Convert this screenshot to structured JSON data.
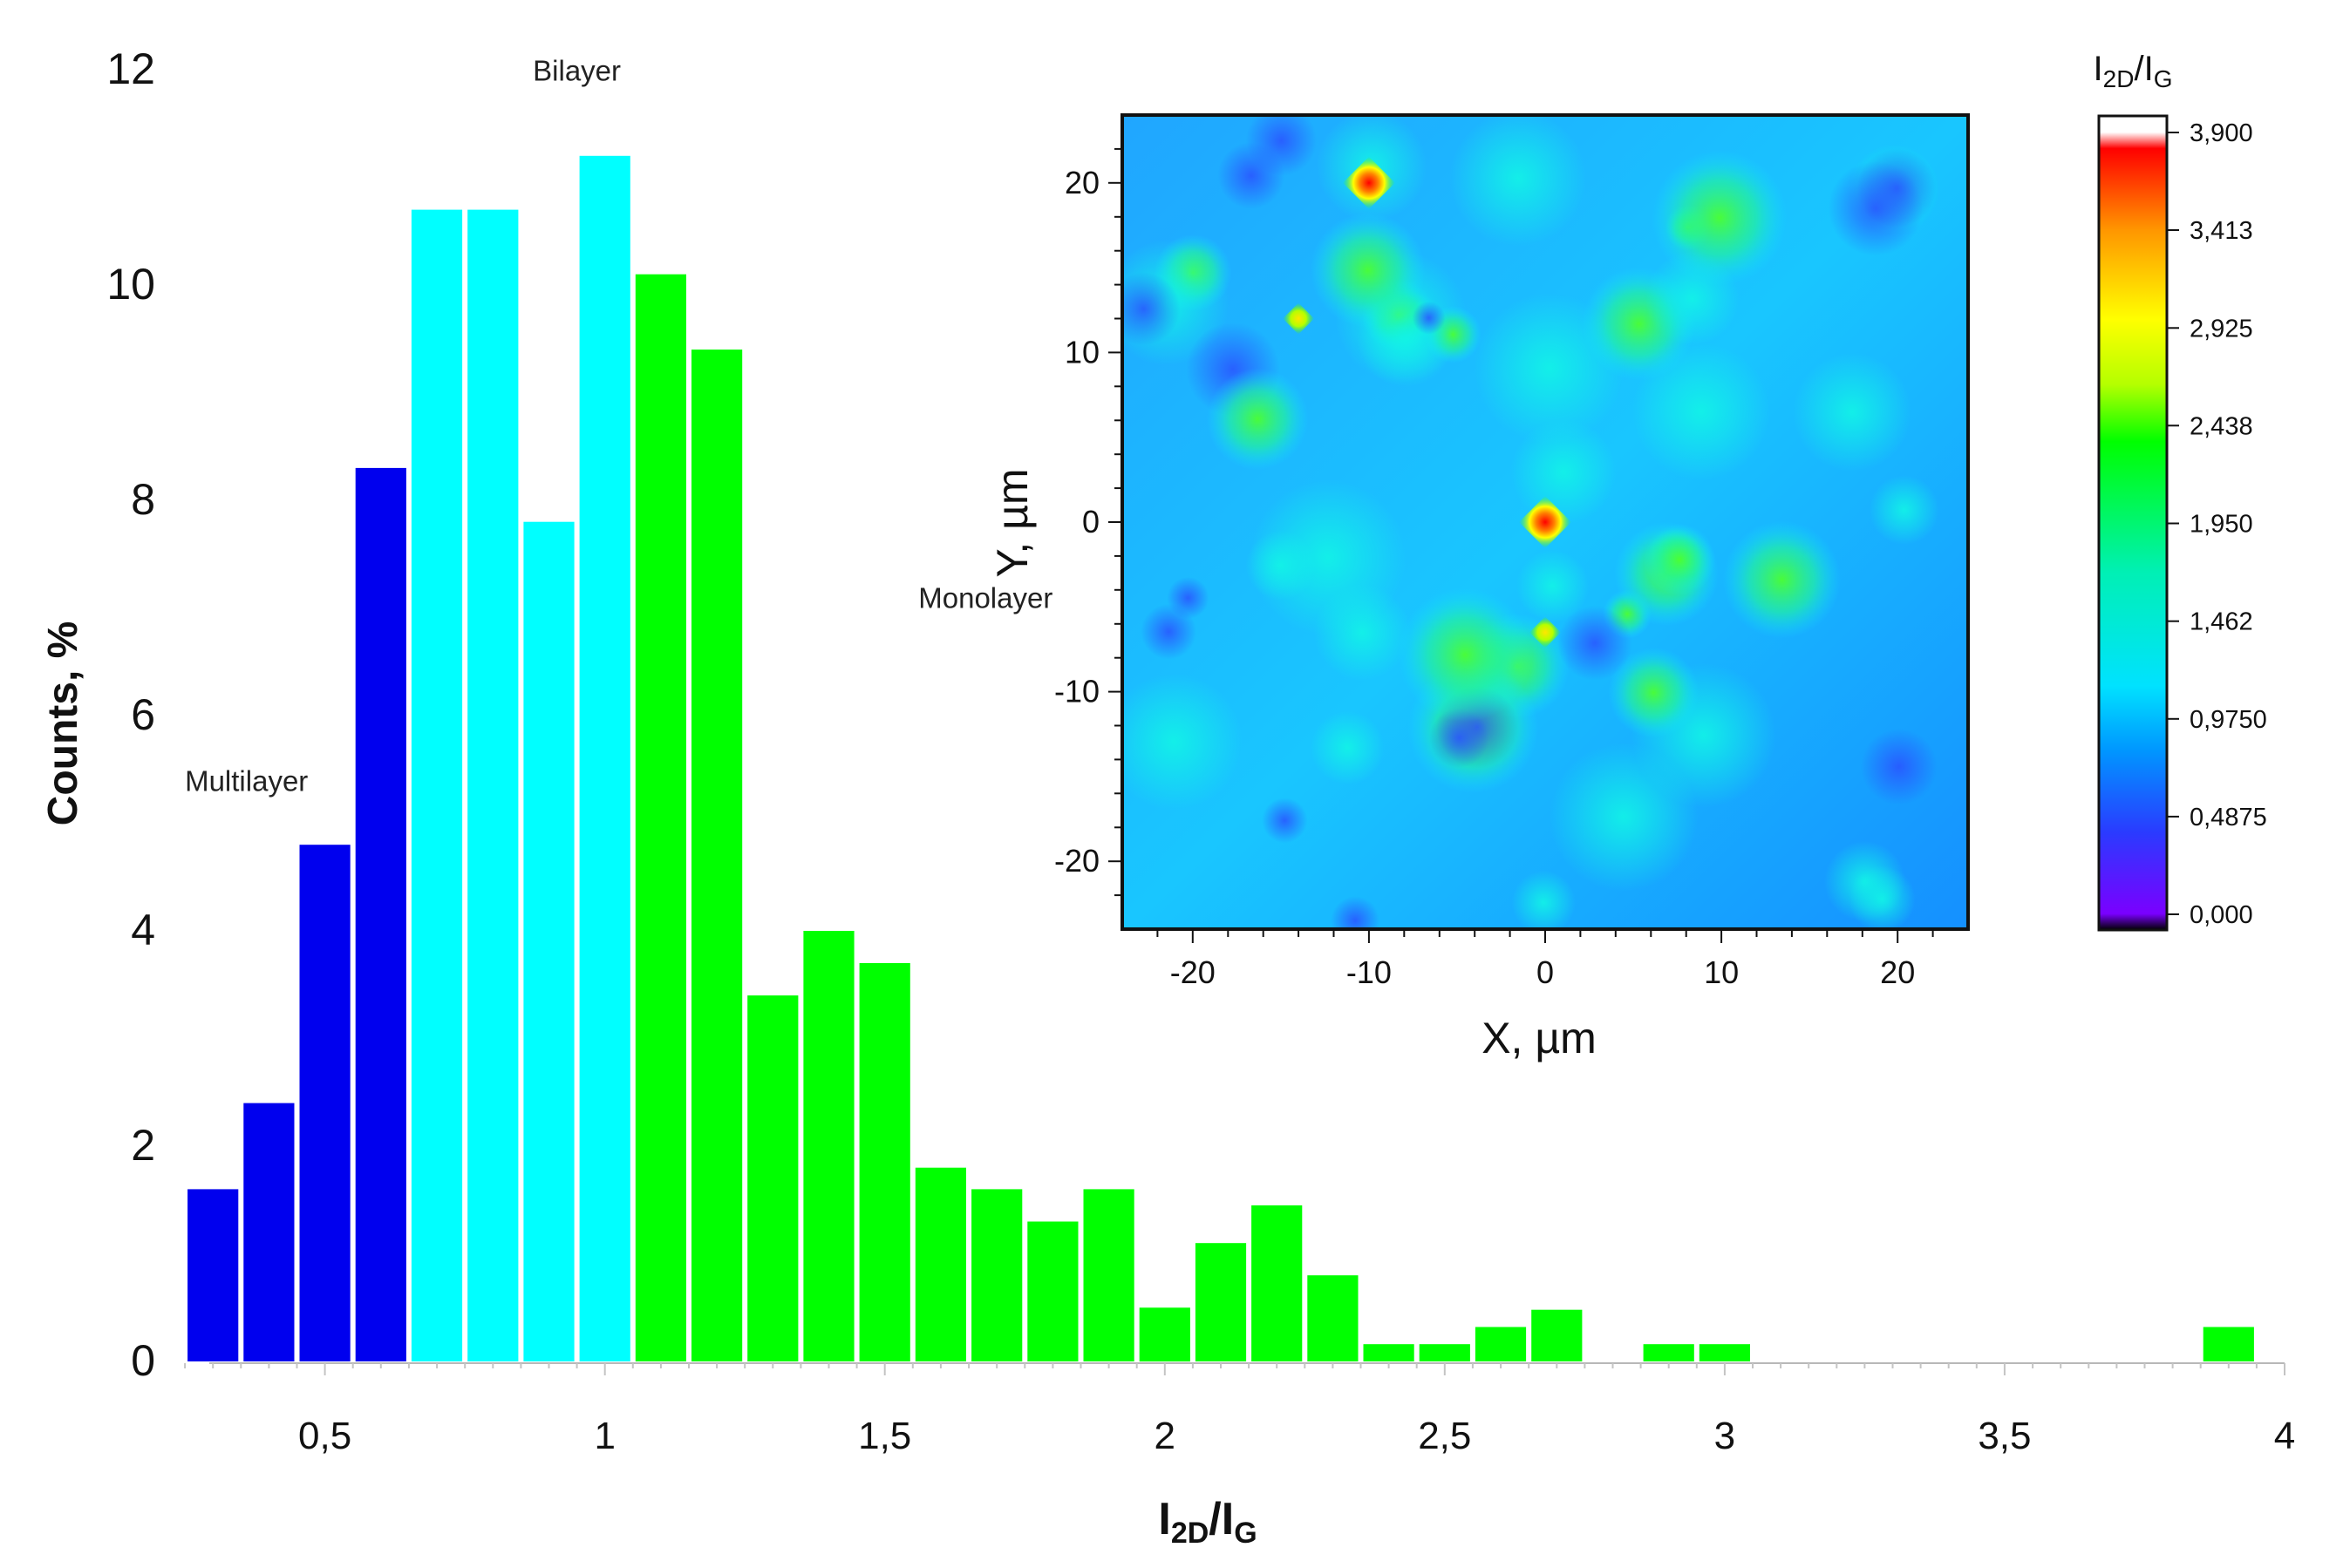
{
  "chart_data": [
    {
      "type": "bar",
      "subtype": "histogram",
      "ylabel": "Counts, %",
      "xlabel": {
        "main": "I",
        "sub1": "2D",
        "slash": "/I",
        "sub2": "G"
      },
      "xlim": [
        0.2,
        4.0
      ],
      "ylim": [
        0,
        12
      ],
      "xticks": [
        0.5,
        1,
        1.5,
        2,
        2.5,
        3,
        3.5,
        4
      ],
      "xtick_labels": [
        "0,5",
        "1",
        "1,5",
        "2",
        "2,5",
        "3",
        "3,5",
        "4"
      ],
      "yticks": [
        0,
        2,
        4,
        6,
        8,
        10,
        12
      ],
      "ytick_labels": [
        "0",
        "2",
        "4",
        "6",
        "8",
        "10",
        "12"
      ],
      "bin_width": 0.1,
      "bins": [
        {
          "center": 0.3,
          "value": 1.6,
          "group": "Multilayer"
        },
        {
          "center": 0.4,
          "value": 2.4,
          "group": "Multilayer"
        },
        {
          "center": 0.5,
          "value": 4.8,
          "group": "Multilayer"
        },
        {
          "center": 0.6,
          "value": 8.3,
          "group": "Multilayer"
        },
        {
          "center": 0.7,
          "value": 10.7,
          "group": "Bilayer"
        },
        {
          "center": 0.8,
          "value": 10.7,
          "group": "Bilayer"
        },
        {
          "center": 0.9,
          "value": 7.8,
          "group": "Bilayer"
        },
        {
          "center": 1.0,
          "value": 11.2,
          "group": "Bilayer"
        },
        {
          "center": 1.1,
          "value": 10.1,
          "group": "Monolayer"
        },
        {
          "center": 1.2,
          "value": 9.4,
          "group": "Monolayer"
        },
        {
          "center": 1.3,
          "value": 3.4,
          "group": "Monolayer"
        },
        {
          "center": 1.4,
          "value": 4.0,
          "group": "Monolayer"
        },
        {
          "center": 1.5,
          "value": 3.7,
          "group": "Monolayer"
        },
        {
          "center": 1.6,
          "value": 1.8,
          "group": "Monolayer"
        },
        {
          "center": 1.7,
          "value": 1.6,
          "group": "Monolayer"
        },
        {
          "center": 1.8,
          "value": 1.3,
          "group": "Monolayer"
        },
        {
          "center": 1.9,
          "value": 1.6,
          "group": "Monolayer"
        },
        {
          "center": 2.0,
          "value": 0.5,
          "group": "Monolayer"
        },
        {
          "center": 2.1,
          "value": 1.1,
          "group": "Monolayer"
        },
        {
          "center": 2.2,
          "value": 1.45,
          "group": "Monolayer"
        },
        {
          "center": 2.3,
          "value": 0.8,
          "group": "Monolayer"
        },
        {
          "center": 2.4,
          "value": 0.16,
          "group": "Monolayer"
        },
        {
          "center": 2.5,
          "value": 0.16,
          "group": "Monolayer"
        },
        {
          "center": 2.6,
          "value": 0.32,
          "group": "Monolayer"
        },
        {
          "center": 2.7,
          "value": 0.48,
          "group": "Monolayer"
        },
        {
          "center": 2.9,
          "value": 0.16,
          "group": "Monolayer"
        },
        {
          "center": 3.0,
          "value": 0.16,
          "group": "Monolayer"
        },
        {
          "center": 3.9,
          "value": 0.32,
          "group": "Monolayer"
        }
      ],
      "groups": [
        {
          "name": "Multilayer",
          "color": "#0000ee",
          "label_x": 0.36,
          "label_y": 5.3
        },
        {
          "name": "Bilayer",
          "color": "#00ffff",
          "label_x": 0.95,
          "label_y": 11.9
        },
        {
          "name": "Monolayer",
          "color": "#00ff00",
          "label_x": 1.68,
          "label_y": 7.0
        }
      ]
    },
    {
      "type": "heatmap",
      "xlabel": "X, µm",
      "ylabel": "Y, µm",
      "xlim": [
        -24,
        24
      ],
      "ylim": [
        -24,
        24
      ],
      "xticks": [
        -20,
        -10,
        0,
        10,
        20
      ],
      "xtick_labels": [
        "-20",
        "-10",
        "0",
        "10",
        "20"
      ],
      "yticks": [
        -20,
        -10,
        0,
        10,
        20
      ],
      "ytick_labels": [
        "-20",
        "-10",
        "0",
        "10",
        "20"
      ],
      "hotspots": [
        {
          "x": -10,
          "y": 20,
          "value": 3.9
        },
        {
          "x": 0,
          "y": 0,
          "value": 3.9
        },
        {
          "x": -14,
          "y": 12,
          "value": 2.9
        },
        {
          "x": 0,
          "y": -6.5,
          "value": 2.7
        }
      ]
    }
  ],
  "colorbar": {
    "title": {
      "main": "I",
      "sub1": "2D",
      "slash": "/I",
      "sub2": "G"
    },
    "min": 0.0,
    "max": 3.9,
    "tick_values": [
      3.9,
      3.413,
      2.925,
      2.438,
      1.95,
      1.462,
      0.975,
      0.4875,
      0.0
    ],
    "tick_labels": [
      "3,900",
      "3,413",
      "2,925",
      "2,438",
      "1,950",
      "1,462",
      "0,9750",
      "0,4875",
      "0,000"
    ],
    "colors": [
      "#000000",
      "#7a00ff",
      "#2a3bff",
      "#0096ff",
      "#00e2ff",
      "#00f0b4",
      "#00ff00",
      "#b4ff00",
      "#ffff00",
      "#ff9600",
      "#ff0000",
      "#ffffff"
    ]
  }
}
